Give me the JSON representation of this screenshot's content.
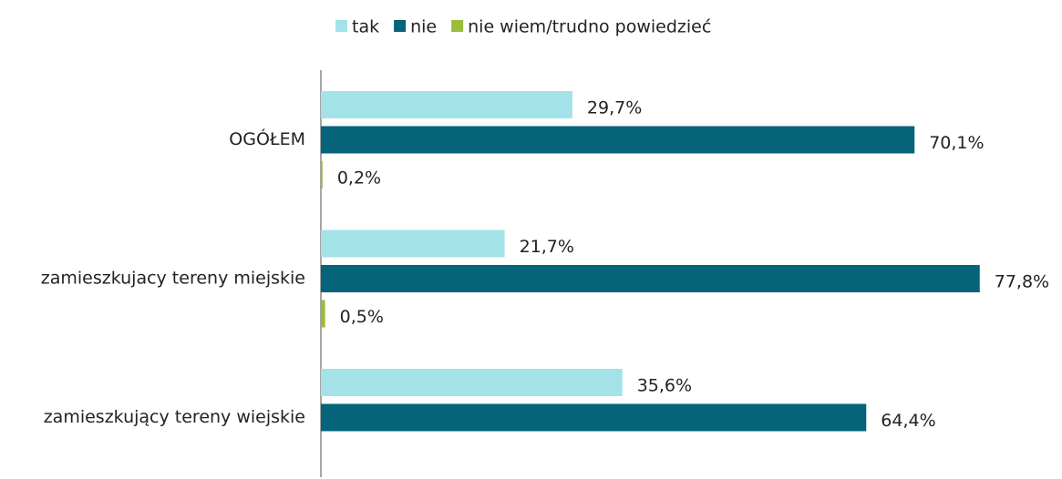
{
  "chart_data": {
    "type": "hbar",
    "categories": [
      "OGÓŁEM",
      "zamieszkujacy tereny miejskie",
      "zamieszkujący tereny wiejskie"
    ],
    "series": [
      {
        "name": "tak",
        "color": "#a3e3e8",
        "values": [
          29.7,
          21.7,
          35.6
        ],
        "value_labels": [
          "29,7%",
          "21,7%",
          "35,6%"
        ]
      },
      {
        "name": "nie",
        "color": "#05637a",
        "values": [
          70.1,
          77.8,
          64.4
        ],
        "value_labels": [
          "70,1%",
          "77,8%",
          "64,4%"
        ]
      },
      {
        "name": "nie wiem/trudno powiedzieć",
        "color": "#9bbb3b",
        "values": [
          0.2,
          0.5,
          null
        ],
        "value_labels": [
          "0,2%",
          "0,5%",
          null
        ]
      }
    ],
    "xlim": [
      0,
      100
    ],
    "legend": "top"
  }
}
